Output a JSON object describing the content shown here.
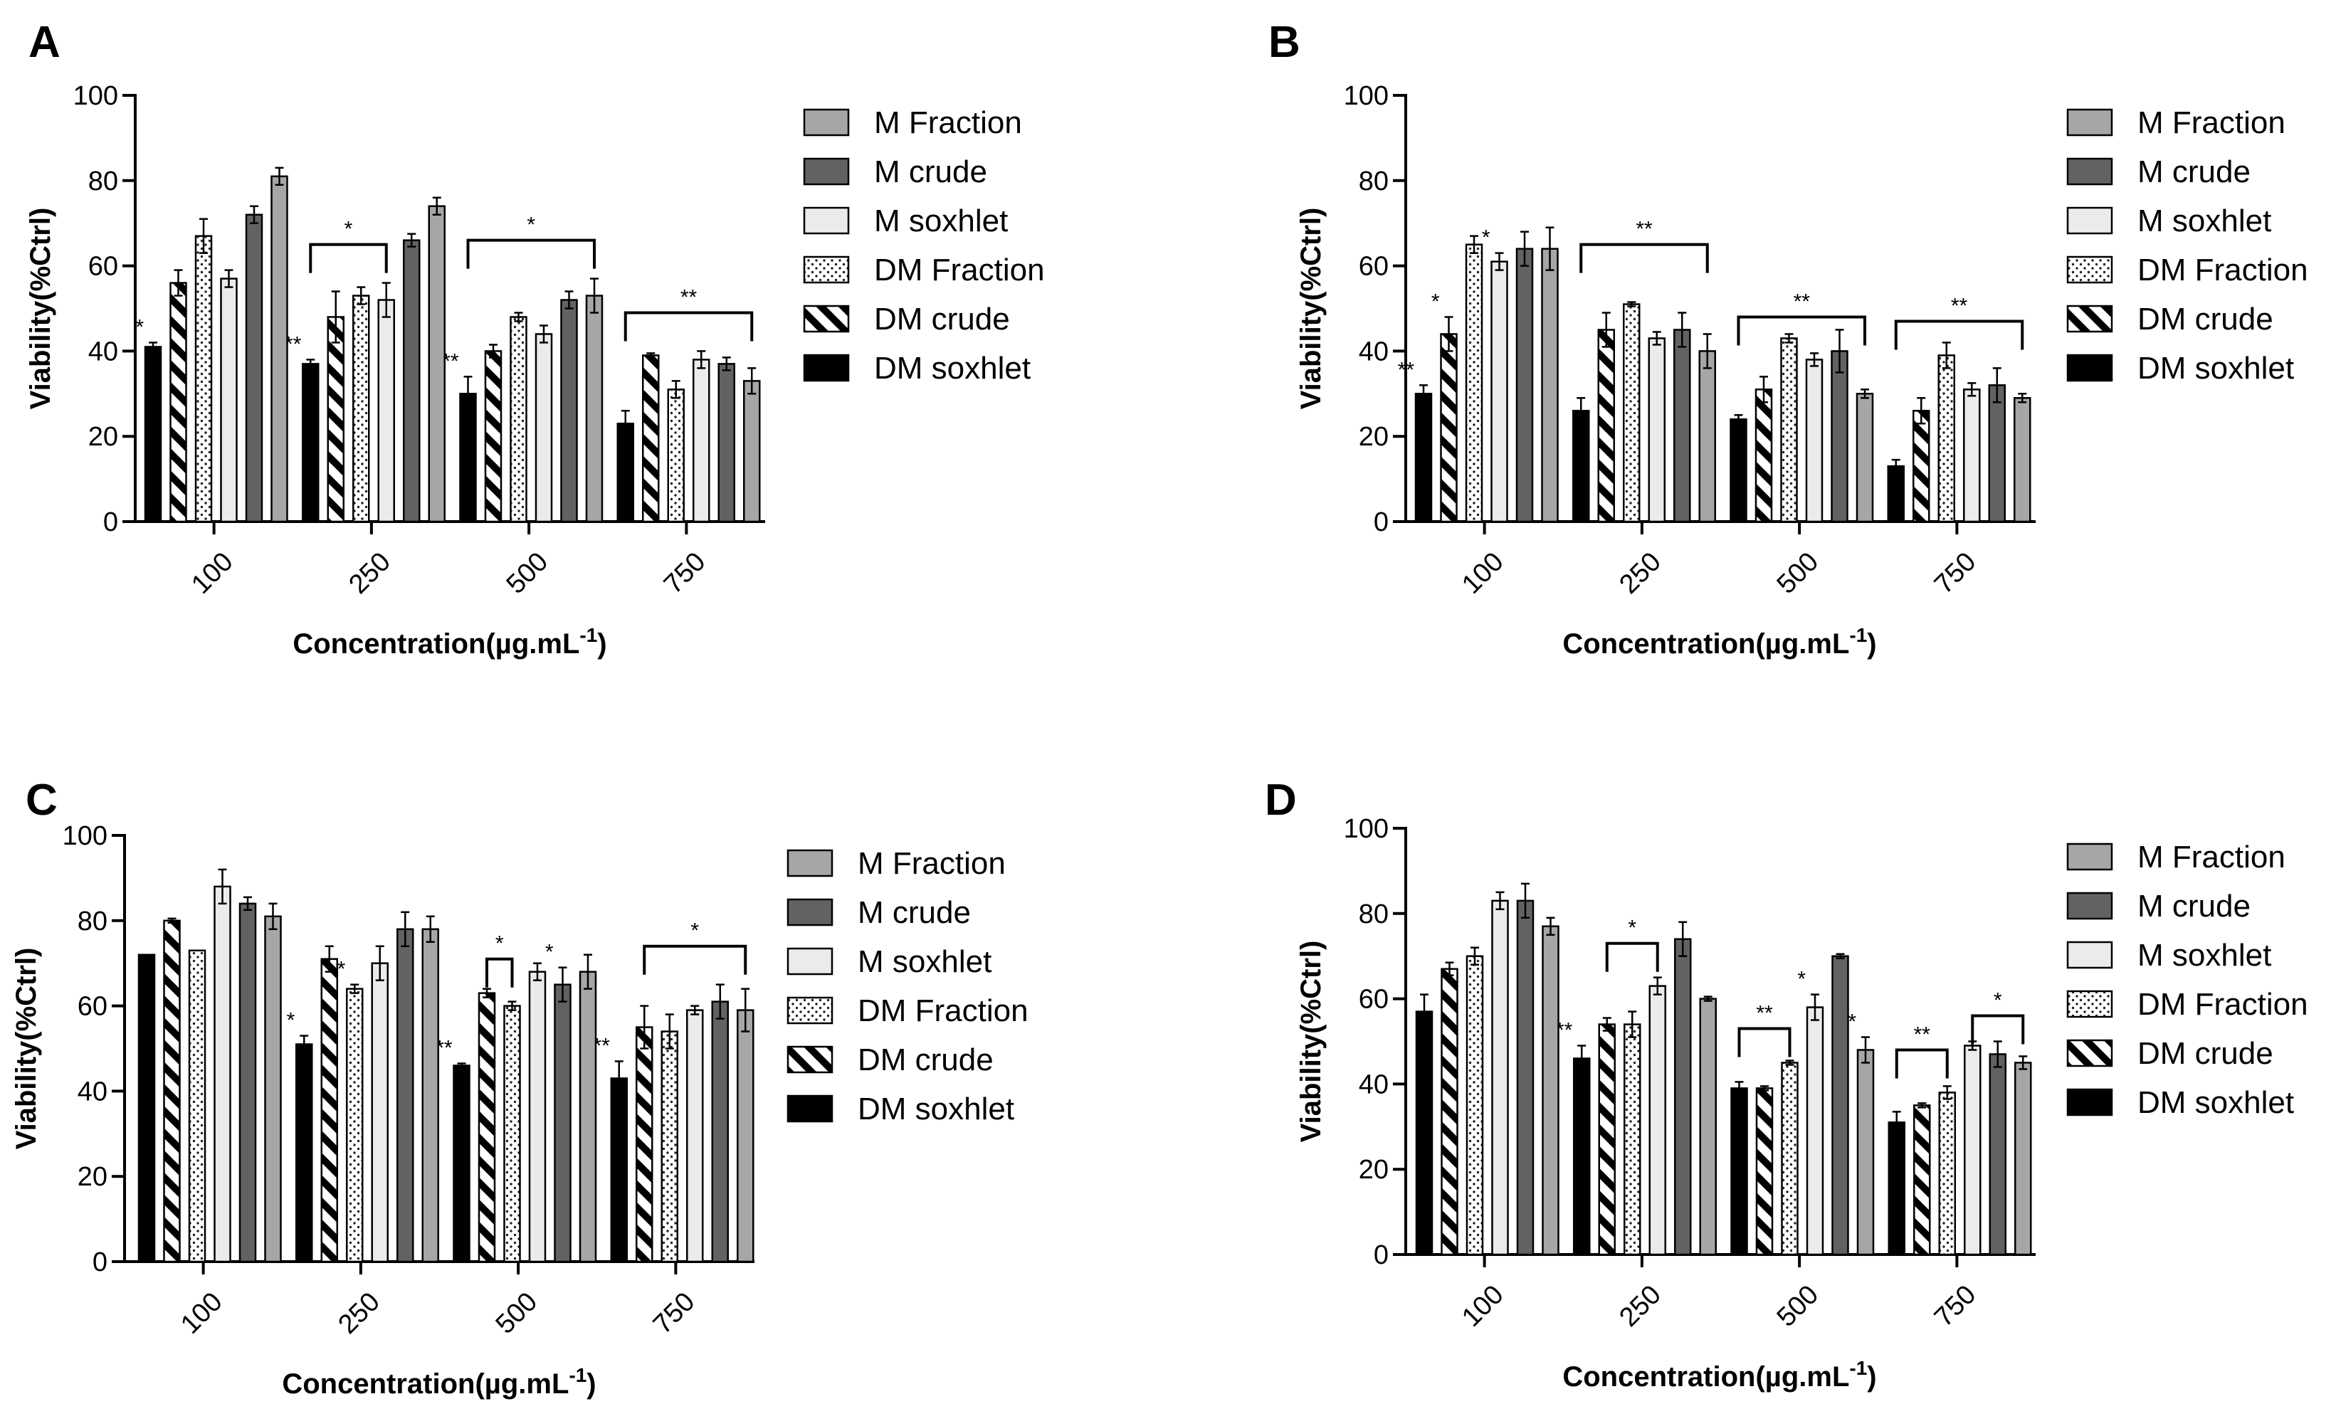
{
  "chart_data": [
    {
      "panel": "A",
      "type": "bar",
      "ylabel": "Viability(%Ctrl)",
      "xlabel": "Concentration(µg.mL-1)",
      "xlabel_main": "Concentration(µg.mL",
      "xlabel_sup": "-1",
      "xlabel_close": ")",
      "ylim": [
        0,
        100
      ],
      "yticks": [
        "0",
        "20",
        "40",
        "60",
        "80",
        "100"
      ],
      "categories": [
        "100",
        "250",
        "500",
        "750"
      ],
      "legend": [
        "M Fraction",
        "M crude",
        "M soxhlet",
        "DM Fraction",
        "DM crude",
        "DM soxhlet"
      ],
      "series": [
        {
          "name": "DM soxhlet",
          "values": [
            41,
            37,
            30,
            23
          ],
          "errors": [
            1,
            1,
            4,
            3
          ],
          "marks": [
            "*",
            "**",
            "**",
            ""
          ]
        },
        {
          "name": "DM crude",
          "values": [
            56,
            48,
            40,
            39
          ],
          "errors": [
            3,
            6,
            1.5,
            0.5
          ],
          "marks": [
            "",
            "",
            "",
            ""
          ]
        },
        {
          "name": "DM Fraction",
          "values": [
            67,
            53,
            48,
            31
          ],
          "errors": [
            4,
            2,
            1,
            2
          ],
          "marks": [
            "",
            "",
            "",
            ""
          ]
        },
        {
          "name": "M soxhlet",
          "values": [
            57,
            52,
            44,
            38
          ],
          "errors": [
            2,
            4,
            2,
            2
          ],
          "marks": [
            "",
            "",
            "",
            ""
          ]
        },
        {
          "name": "M crude",
          "values": [
            72,
            66,
            52,
            37
          ],
          "errors": [
            2,
            1.5,
            2,
            1.5
          ],
          "marks": [
            "",
            "",
            "",
            ""
          ]
        },
        {
          "name": "M Fraction",
          "values": [
            81,
            74,
            53,
            33
          ],
          "errors": [
            2,
            2,
            4,
            3
          ],
          "marks": [
            "",
            "",
            "",
            ""
          ]
        }
      ],
      "brackets": [
        {
          "category": 1,
          "from_bar": 0,
          "to_bar": 3,
          "y": 65,
          "label": "*"
        },
        {
          "category": 2,
          "from_bar": 0,
          "to_bar": 5,
          "y": 66,
          "label": "*"
        },
        {
          "category": 3,
          "from_bar": 0,
          "to_bar": 5,
          "y": 49,
          "label": "**"
        }
      ]
    },
    {
      "panel": "B",
      "type": "bar",
      "ylabel": "Viability(%Ctrl)",
      "xlabel": "Concentration(µg.mL-1)",
      "xlabel_main": "Concentration(µg.mL",
      "xlabel_sup": "-1",
      "xlabel_close": ")",
      "ylim": [
        0,
        100
      ],
      "yticks": [
        "0",
        "20",
        "40",
        "60",
        "80",
        "100"
      ],
      "categories": [
        "100",
        "250",
        "500",
        "750"
      ],
      "legend": [
        "M Fraction",
        "M crude",
        "M soxhlet",
        "DM Fraction",
        "DM crude",
        "DM soxhlet"
      ],
      "series": [
        {
          "name": "DM soxhlet",
          "values": [
            30,
            26,
            24,
            13
          ],
          "errors": [
            2,
            3,
            1,
            1.5
          ],
          "marks": [
            "**",
            "",
            "",
            ""
          ]
        },
        {
          "name": "DM crude",
          "values": [
            44,
            45,
            31,
            26
          ],
          "errors": [
            4,
            4,
            3,
            3
          ],
          "marks": [
            "*",
            "",
            "",
            ""
          ]
        },
        {
          "name": "DM Fraction",
          "values": [
            65,
            51,
            43,
            39
          ],
          "errors": [
            2,
            0.5,
            1,
            3
          ],
          "marks": [
            "",
            "",
            "",
            ""
          ]
        },
        {
          "name": "M soxhlet",
          "values": [
            61,
            43,
            38,
            31
          ],
          "errors": [
            2,
            1.5,
            1.5,
            1.5
          ],
          "marks": [
            "*",
            "",
            "",
            ""
          ]
        },
        {
          "name": "M crude",
          "values": [
            64,
            45,
            40,
            32
          ],
          "errors": [
            4,
            4,
            5,
            4
          ],
          "marks": [
            "",
            "",
            "",
            ""
          ]
        },
        {
          "name": "M Fraction",
          "values": [
            64,
            40,
            30,
            29
          ],
          "errors": [
            5,
            4,
            1,
            1
          ],
          "marks": [
            "",
            "",
            "",
            ""
          ]
        }
      ],
      "brackets": [
        {
          "category": 1,
          "from_bar": 0,
          "to_bar": 5,
          "y": 65,
          "label": "**"
        },
        {
          "category": 2,
          "from_bar": 0,
          "to_bar": 5,
          "y": 48,
          "label": "**"
        },
        {
          "category": 3,
          "from_bar": 0,
          "to_bar": 5,
          "y": 47,
          "label": "**"
        }
      ]
    },
    {
      "panel": "C",
      "type": "bar",
      "ylabel": "Viability(%Ctrl)",
      "xlabel": "Concentration(µg.mL-1)",
      "xlabel_main": "Concentration(µg.mL",
      "xlabel_sup": "-1",
      "xlabel_close": ")",
      "ylim": [
        0,
        100
      ],
      "yticks": [
        "0",
        "20",
        "40",
        "60",
        "80",
        "100"
      ],
      "categories": [
        "100",
        "250",
        "500",
        "750"
      ],
      "legend": [
        "M Fraction",
        "M crude",
        "M soxhlet",
        "DM Fraction",
        "DM crude",
        "DM soxhlet"
      ],
      "series": [
        {
          "name": "DM soxhlet",
          "values": [
            72,
            51,
            46,
            43
          ],
          "errors": [
            0,
            2,
            0.5,
            4
          ],
          "marks": [
            "",
            "*",
            "**",
            "**"
          ]
        },
        {
          "name": "DM crude",
          "values": [
            80,
            71,
            63,
            55
          ],
          "errors": [
            0.5,
            3,
            1,
            5
          ],
          "marks": [
            "",
            "",
            "",
            ""
          ]
        },
        {
          "name": "DM Fraction",
          "values": [
            73,
            64,
            60,
            54
          ],
          "errors": [
            0,
            1,
            1,
            4
          ],
          "marks": [
            "",
            "*",
            "",
            ""
          ]
        },
        {
          "name": "M soxhlet",
          "values": [
            88,
            70,
            68,
            59
          ],
          "errors": [
            4,
            4,
            2,
            1
          ],
          "marks": [
            "",
            "",
            "",
            ""
          ]
        },
        {
          "name": "M crude",
          "values": [
            84,
            78,
            65,
            61
          ],
          "errors": [
            1.5,
            4,
            4,
            4
          ],
          "marks": [
            "",
            "",
            "*",
            ""
          ]
        },
        {
          "name": "M Fraction",
          "values": [
            81,
            78,
            68,
            59
          ],
          "errors": [
            3,
            3,
            4,
            5
          ],
          "marks": [
            "",
            "",
            "",
            ""
          ]
        }
      ],
      "brackets": [
        {
          "category": 2,
          "from_bar": 1,
          "to_bar": 2,
          "y": 71,
          "label": "*"
        },
        {
          "category": 3,
          "from_bar": 1,
          "to_bar": 5,
          "y": 74,
          "label": "*"
        }
      ]
    },
    {
      "panel": "D",
      "type": "bar",
      "ylabel": "Viability(%Ctrl)",
      "xlabel": "Concentration(µg.mL-1)",
      "xlabel_main": "Concentration(µg.mL",
      "xlabel_sup": "-1",
      "xlabel_close": ")",
      "ylim": [
        0,
        100
      ],
      "yticks": [
        "0",
        "20",
        "40",
        "60",
        "80",
        "100"
      ],
      "categories": [
        "100",
        "250",
        "500",
        "750"
      ],
      "legend": [
        "M Fraction",
        "M crude",
        "M soxhlet",
        "DM Fraction",
        "DM crude",
        "DM soxhlet"
      ],
      "series": [
        {
          "name": "DM soxhlet",
          "values": [
            57,
            46,
            39,
            31
          ],
          "errors": [
            4,
            3,
            1.5,
            2.5
          ],
          "marks": [
            "",
            "**",
            "",
            ""
          ]
        },
        {
          "name": "DM crude",
          "values": [
            67,
            54,
            39,
            35
          ],
          "errors": [
            1.5,
            1.5,
            0.5,
            0.5
          ],
          "marks": [
            "",
            "",
            "",
            ""
          ]
        },
        {
          "name": "DM Fraction",
          "values": [
            70,
            54,
            45,
            38
          ],
          "errors": [
            2,
            3,
            0.5,
            1.5
          ],
          "marks": [
            "",
            "",
            "",
            ""
          ]
        },
        {
          "name": "M soxhlet",
          "values": [
            83,
            63,
            58,
            49
          ],
          "errors": [
            2,
            2,
            3,
            1
          ],
          "marks": [
            "",
            "",
            "*",
            ""
          ]
        },
        {
          "name": "M crude",
          "values": [
            83,
            74,
            70,
            47
          ],
          "errors": [
            4,
            4,
            0.5,
            3
          ],
          "marks": [
            "",
            "",
            "",
            ""
          ]
        },
        {
          "name": "M Fraction",
          "values": [
            77,
            60,
            48,
            45
          ],
          "errors": [
            2,
            0.5,
            3,
            1.5
          ],
          "marks": [
            "",
            "",
            "*",
            ""
          ]
        }
      ],
      "brackets": [
        {
          "category": 1,
          "from_bar": 1,
          "to_bar": 3,
          "y": 73,
          "label": "*"
        },
        {
          "category": 2,
          "from_bar": 0,
          "to_bar": 2,
          "y": 53,
          "label": "**"
        },
        {
          "category": 3,
          "from_bar": 0,
          "to_bar": 2,
          "y": 48,
          "label": "**"
        },
        {
          "category": 3,
          "from_bar": 3,
          "to_bar": 5,
          "y": 56,
          "label": "*"
        }
      ]
    }
  ],
  "colors": {
    "m_fraction": "#a6a6a6",
    "m_crude": "#626262",
    "m_soxhlet": "#ebebeb",
    "dm_fraction": "#ffffff",
    "dm_crude": "#ffffff",
    "dm_soxhlet": "#000000",
    "axis": "#000000"
  }
}
